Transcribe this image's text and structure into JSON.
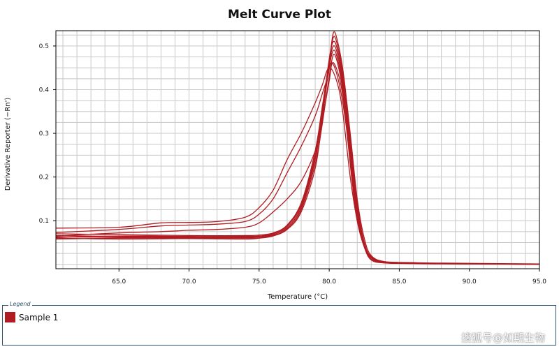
{
  "chart_data": {
    "type": "line",
    "title": "Melt Curve Plot",
    "xlabel": "Temperature (°C)",
    "ylabel": "Derivative Reporter (−Rn')",
    "xlim": [
      60.5,
      95.0
    ],
    "ylim": [
      -0.01,
      0.535
    ],
    "x_ticks": [
      65.0,
      70.0,
      75.0,
      80.0,
      85.0,
      90.0,
      95.0
    ],
    "x_tick_labels": [
      "65.0",
      "70.0",
      "75.0",
      "80.0",
      "85.0",
      "90.0",
      "95.0"
    ],
    "y_ticks": [
      0.1,
      0.2,
      0.3,
      0.4,
      0.5
    ],
    "y_tick_labels": [
      "0.1",
      "0.2",
      "0.3",
      "0.4",
      "0.5"
    ],
    "grid": true,
    "line_color": "#b01c22",
    "series": [
      {
        "name": "Sample 1",
        "points": [
          [
            60.5,
            0.083
          ],
          [
            65,
            0.085
          ],
          [
            68,
            0.095
          ],
          [
            70,
            0.096
          ],
          [
            72,
            0.098
          ],
          [
            74,
            0.108
          ],
          [
            75,
            0.13
          ],
          [
            76,
            0.17
          ],
          [
            77,
            0.24
          ],
          [
            78,
            0.3
          ],
          [
            79,
            0.37
          ],
          [
            79.5,
            0.41
          ],
          [
            79.8,
            0.44
          ],
          [
            80,
            0.45
          ],
          [
            80.3,
            0.44
          ],
          [
            80.7,
            0.4
          ],
          [
            81,
            0.34
          ],
          [
            81.5,
            0.2
          ],
          [
            82,
            0.1
          ],
          [
            82.5,
            0.04
          ],
          [
            83,
            0.01
          ],
          [
            84,
            0.003
          ],
          [
            86,
            0.002
          ],
          [
            88,
            0.001
          ],
          [
            95,
            0.0
          ]
        ]
      },
      {
        "name": "Sample 1",
        "points": [
          [
            60.5,
            0.073
          ],
          [
            65,
            0.08
          ],
          [
            68,
            0.088
          ],
          [
            70,
            0.09
          ],
          [
            72,
            0.092
          ],
          [
            74,
            0.098
          ],
          [
            75,
            0.115
          ],
          [
            76,
            0.15
          ],
          [
            77,
            0.21
          ],
          [
            78,
            0.27
          ],
          [
            79,
            0.34
          ],
          [
            79.5,
            0.39
          ],
          [
            79.9,
            0.43
          ],
          [
            80.1,
            0.46
          ],
          [
            80.4,
            0.45
          ],
          [
            80.8,
            0.4
          ],
          [
            81.2,
            0.32
          ],
          [
            81.6,
            0.2
          ],
          [
            82,
            0.1
          ],
          [
            82.5,
            0.04
          ],
          [
            83,
            0.012
          ],
          [
            84,
            0.004
          ],
          [
            86,
            0.002
          ],
          [
            95,
            0.0
          ]
        ]
      },
      {
        "name": "Sample 1",
        "points": [
          [
            60.5,
            0.065
          ],
          [
            65,
            0.072
          ],
          [
            68,
            0.075
          ],
          [
            70,
            0.078
          ],
          [
            72,
            0.08
          ],
          [
            74,
            0.085
          ],
          [
            75,
            0.095
          ],
          [
            76,
            0.12
          ],
          [
            77,
            0.15
          ],
          [
            78,
            0.19
          ],
          [
            79,
            0.26
          ],
          [
            79.5,
            0.33
          ],
          [
            80,
            0.42
          ],
          [
            80.2,
            0.46
          ],
          [
            80.5,
            0.45
          ],
          [
            80.9,
            0.4
          ],
          [
            81.3,
            0.3
          ],
          [
            81.7,
            0.18
          ],
          [
            82.2,
            0.08
          ],
          [
            82.7,
            0.03
          ],
          [
            83.2,
            0.01
          ],
          [
            84,
            0.004
          ],
          [
            86,
            0.002
          ],
          [
            95,
            0.0
          ]
        ]
      },
      {
        "name": "Sample 1",
        "points": [
          [
            60.5,
            0.06
          ],
          [
            65,
            0.058
          ],
          [
            70,
            0.059
          ],
          [
            74,
            0.058
          ],
          [
            75,
            0.06
          ],
          [
            76,
            0.065
          ],
          [
            77,
            0.08
          ],
          [
            78,
            0.12
          ],
          [
            79,
            0.22
          ],
          [
            79.5,
            0.33
          ],
          [
            80,
            0.46
          ],
          [
            80.3,
            0.53
          ],
          [
            80.6,
            0.51
          ],
          [
            81,
            0.44
          ],
          [
            81.5,
            0.3
          ],
          [
            82,
            0.15
          ],
          [
            82.5,
            0.06
          ],
          [
            83,
            0.02
          ],
          [
            84,
            0.006
          ],
          [
            86,
            0.003
          ],
          [
            88,
            0.002
          ],
          [
            95,
            0.0
          ]
        ]
      },
      {
        "name": "Sample 1",
        "points": [
          [
            60.5,
            0.063
          ],
          [
            65,
            0.062
          ],
          [
            70,
            0.062
          ],
          [
            74,
            0.062
          ],
          [
            75,
            0.063
          ],
          [
            76,
            0.068
          ],
          [
            77,
            0.085
          ],
          [
            78,
            0.13
          ],
          [
            79,
            0.24
          ],
          [
            79.5,
            0.34
          ],
          [
            80,
            0.46
          ],
          [
            80.3,
            0.52
          ],
          [
            80.6,
            0.5
          ],
          [
            81,
            0.43
          ],
          [
            81.5,
            0.29
          ],
          [
            82,
            0.14
          ],
          [
            82.5,
            0.05
          ],
          [
            83,
            0.018
          ],
          [
            84,
            0.005
          ],
          [
            86,
            0.003
          ],
          [
            95,
            0.0
          ]
        ]
      },
      {
        "name": "Sample 1",
        "points": [
          [
            60.5,
            0.066
          ],
          [
            65,
            0.064
          ],
          [
            70,
            0.063
          ],
          [
            74,
            0.063
          ],
          [
            75,
            0.064
          ],
          [
            76,
            0.07
          ],
          [
            77,
            0.09
          ],
          [
            78,
            0.14
          ],
          [
            79,
            0.25
          ],
          [
            79.5,
            0.35
          ],
          [
            80,
            0.47
          ],
          [
            80.3,
            0.51
          ],
          [
            80.6,
            0.49
          ],
          [
            81,
            0.42
          ],
          [
            81.5,
            0.28
          ],
          [
            82,
            0.13
          ],
          [
            82.5,
            0.05
          ],
          [
            83,
            0.016
          ],
          [
            84,
            0.005
          ],
          [
            86,
            0.003
          ],
          [
            95,
            0.0
          ]
        ]
      },
      {
        "name": "Sample 1",
        "points": [
          [
            60.5,
            0.07
          ],
          [
            65,
            0.068
          ],
          [
            70,
            0.066
          ],
          [
            74,
            0.066
          ],
          [
            75,
            0.067
          ],
          [
            76,
            0.072
          ],
          [
            77,
            0.09
          ],
          [
            78,
            0.14
          ],
          [
            79,
            0.26
          ],
          [
            79.5,
            0.36
          ],
          [
            80,
            0.46
          ],
          [
            80.3,
            0.5
          ],
          [
            80.6,
            0.48
          ],
          [
            81,
            0.41
          ],
          [
            81.5,
            0.27
          ],
          [
            82,
            0.12
          ],
          [
            82.5,
            0.045
          ],
          [
            83,
            0.016
          ],
          [
            84,
            0.006
          ],
          [
            86,
            0.004
          ],
          [
            88,
            0.003
          ],
          [
            95,
            0.001
          ]
        ]
      },
      {
        "name": "Sample 1",
        "points": [
          [
            60.5,
            0.062
          ],
          [
            65,
            0.065
          ],
          [
            70,
            0.064
          ],
          [
            74,
            0.064
          ],
          [
            75,
            0.065
          ],
          [
            76,
            0.07
          ],
          [
            77,
            0.088
          ],
          [
            78,
            0.135
          ],
          [
            79,
            0.245
          ],
          [
            79.5,
            0.345
          ],
          [
            80,
            0.45
          ],
          [
            80.3,
            0.49
          ],
          [
            80.6,
            0.47
          ],
          [
            81,
            0.4
          ],
          [
            81.5,
            0.26
          ],
          [
            82,
            0.12
          ],
          [
            82.5,
            0.045
          ],
          [
            83,
            0.016
          ],
          [
            84,
            0.005
          ],
          [
            86,
            0.003
          ],
          [
            95,
            0.0
          ]
        ]
      },
      {
        "name": "Sample 1",
        "points": [
          [
            60.5,
            0.058
          ],
          [
            65,
            0.06
          ],
          [
            70,
            0.06
          ],
          [
            74,
            0.06
          ],
          [
            75,
            0.061
          ],
          [
            76,
            0.066
          ],
          [
            77,
            0.082
          ],
          [
            78,
            0.125
          ],
          [
            79,
            0.23
          ],
          [
            79.5,
            0.32
          ],
          [
            80,
            0.43
          ],
          [
            80.3,
            0.48
          ],
          [
            80.6,
            0.46
          ],
          [
            81,
            0.39
          ],
          [
            81.5,
            0.25
          ],
          [
            82,
            0.11
          ],
          [
            82.5,
            0.04
          ],
          [
            83,
            0.015
          ],
          [
            84,
            0.005
          ],
          [
            86,
            0.003
          ],
          [
            95,
            0.0
          ]
        ]
      }
    ]
  },
  "legend": {
    "title": "Legend",
    "entries": [
      {
        "label": "Sample 1",
        "color": "#b01c22"
      }
    ]
  },
  "watermark": "搜狐号@如期生物"
}
